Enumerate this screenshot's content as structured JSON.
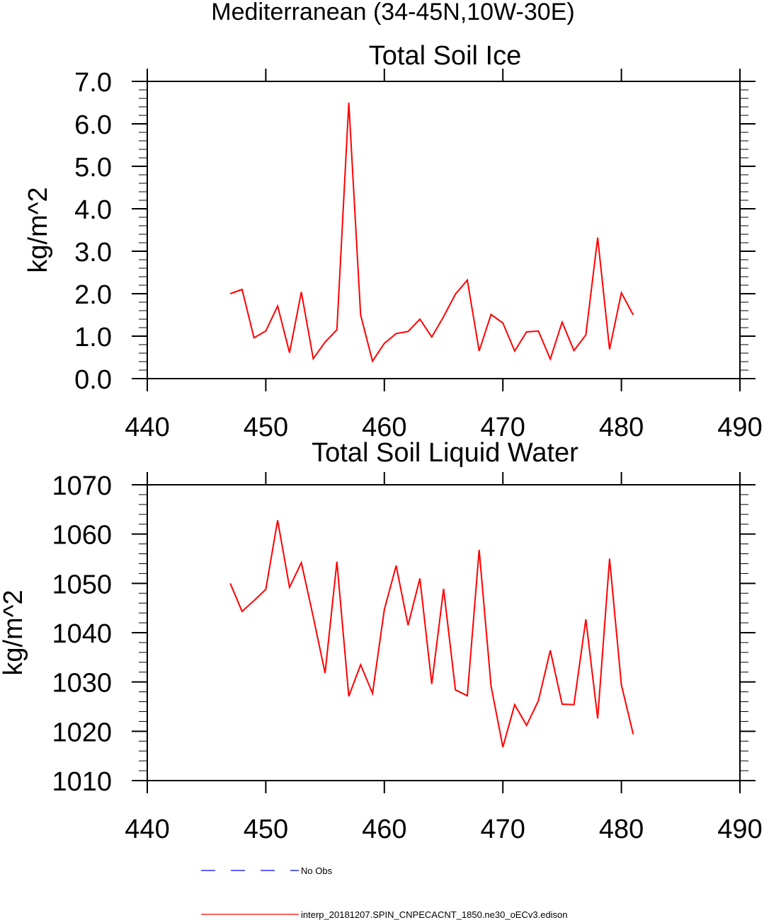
{
  "figure": {
    "title": "Mediterranean (34-45N,10W-30E)"
  },
  "chart_data": [
    {
      "type": "line",
      "title": "Total Soil Ice",
      "xlabel": "",
      "ylabel": "kg/m^2",
      "xlim": [
        440,
        490
      ],
      "ylim": [
        0,
        7
      ],
      "xticks": [
        440,
        450,
        460,
        470,
        480,
        490
      ],
      "yticks": [
        0,
        1,
        2,
        3,
        4,
        5,
        6,
        7
      ],
      "ytick_labels": [
        "0.0",
        "1.0",
        "2.0",
        "3.0",
        "4.0",
        "5.0",
        "6.0",
        "7.0"
      ],
      "grid": false,
      "x": [
        447,
        448,
        449,
        450,
        451,
        452,
        453,
        454,
        455,
        456,
        457,
        458,
        459,
        460,
        461,
        462,
        463,
        464,
        465,
        466,
        467,
        468,
        469,
        470,
        471,
        472,
        473,
        474,
        475,
        476,
        477,
        478,
        479,
        480,
        481
      ],
      "series": [
        {
          "name": "interp_20181207.SPIN_CNPECACNT_1850.ne30_oECv3.edison",
          "color": "#ff0000",
          "values": [
            2.0,
            2.1,
            0.96,
            1.12,
            1.71,
            0.61,
            2.04,
            0.47,
            0.86,
            1.15,
            6.5,
            1.5,
            0.41,
            0.83,
            1.06,
            1.11,
            1.4,
            0.98,
            1.46,
            1.99,
            2.32,
            0.65,
            1.51,
            1.31,
            0.65,
            1.1,
            1.12,
            0.46,
            1.33,
            0.66,
            1.03,
            3.32,
            0.69,
            2.02,
            1.5
          ]
        }
      ]
    },
    {
      "type": "line",
      "title": "Total Soil Liquid Water",
      "xlabel": "",
      "ylabel": "kg/m^2",
      "xlim": [
        440,
        490
      ],
      "ylim": [
        1010,
        1070
      ],
      "xticks": [
        440,
        450,
        460,
        470,
        480,
        490
      ],
      "yticks": [
        1010,
        1020,
        1030,
        1040,
        1050,
        1060,
        1070
      ],
      "ytick_labels": [
        "1010",
        "1020",
        "1030",
        "1040",
        "1050",
        "1060",
        "1070"
      ],
      "grid": false,
      "x": [
        447,
        448,
        449,
        450,
        451,
        452,
        453,
        454,
        455,
        456,
        457,
        458,
        459,
        460,
        461,
        462,
        463,
        464,
        465,
        466,
        467,
        468,
        469,
        470,
        471,
        472,
        473,
        474,
        475,
        476,
        477,
        478,
        479,
        480,
        481
      ],
      "series": [
        {
          "name": "interp_20181207.SPIN_CNPECACNT_1850.ne30_oECv3.edison",
          "color": "#ff0000",
          "values": [
            1050,
            1044.3,
            1046.5,
            1048.8,
            1062.8,
            1049.2,
            1054.2,
            1043.2,
            1031.8,
            1054.4,
            1027.1,
            1033.5,
            1027.7,
            1044.7,
            1053.6,
            1041.5,
            1051,
            1029.6,
            1048.9,
            1028.4,
            1027.2,
            1056.8,
            1029.2,
            1016.8,
            1025.4,
            1021.2,
            1026.2,
            1036.4,
            1025.5,
            1025.4,
            1042.7,
            1022.6,
            1055,
            1029.4,
            1019.4
          ]
        }
      ]
    }
  ],
  "legend": {
    "placement": "bottom",
    "items": [
      {
        "label": "No Obs",
        "color": "#0000ff",
        "style": "dashed"
      },
      {
        "label": "interp_20181207.SPIN_CNPECACNT_1850.ne30_oECv3.edison",
        "color": "#ff0000",
        "style": "solid"
      }
    ]
  }
}
